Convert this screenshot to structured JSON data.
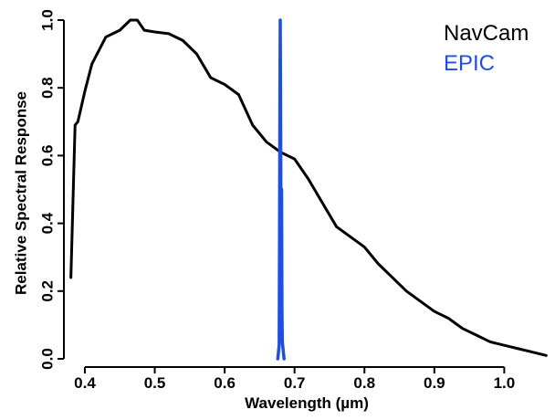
{
  "chart_data": {
    "type": "line",
    "title": "",
    "xlabel": "Wavelength (µm)",
    "ylabel": "Relative Spectral Response",
    "xlim": [
      0.37,
      1.07
    ],
    "ylim": [
      0.0,
      1.0
    ],
    "x_ticks": [
      0.4,
      0.5,
      0.6,
      0.7,
      0.8,
      0.9,
      1.0
    ],
    "x_tick_labels": [
      "0.4",
      "0.5",
      "0.6",
      "0.7",
      "0.8",
      "0.9",
      "1.0"
    ],
    "y_ticks": [
      0.0,
      0.2,
      0.4,
      0.6,
      0.8,
      1.0
    ],
    "y_tick_labels": [
      "0.0",
      "0.2",
      "0.4",
      "0.6",
      "0.8",
      "1.0"
    ],
    "grid": false,
    "legend_position": "top-right",
    "series": [
      {
        "name": "NavCam",
        "color": "#000000",
        "x": [
          0.38,
          0.386,
          0.39,
          0.4,
          0.41,
          0.43,
          0.45,
          0.465,
          0.475,
          0.485,
          0.5,
          0.52,
          0.54,
          0.56,
          0.58,
          0.6,
          0.62,
          0.64,
          0.66,
          0.68,
          0.7,
          0.72,
          0.74,
          0.76,
          0.78,
          0.8,
          0.82,
          0.84,
          0.86,
          0.88,
          0.9,
          0.92,
          0.94,
          0.96,
          0.98,
          1.0,
          1.02,
          1.04,
          1.06
        ],
        "y": [
          0.24,
          0.69,
          0.7,
          0.79,
          0.87,
          0.95,
          0.97,
          1.0,
          1.0,
          0.97,
          0.965,
          0.96,
          0.94,
          0.9,
          0.83,
          0.81,
          0.78,
          0.69,
          0.64,
          0.61,
          0.59,
          0.53,
          0.46,
          0.39,
          0.36,
          0.33,
          0.28,
          0.24,
          0.2,
          0.17,
          0.14,
          0.12,
          0.09,
          0.07,
          0.05,
          0.04,
          0.03,
          0.02,
          0.01
        ]
      },
      {
        "name": "EPIC",
        "color": "#1f4fe0",
        "x": [
          0.676,
          0.677,
          0.678,
          0.6785,
          0.679,
          0.6795,
          0.68,
          0.6805,
          0.681,
          0.6815,
          0.682,
          0.6825,
          0.683,
          0.684,
          0.685
        ],
        "y": [
          0.0,
          0.02,
          0.04,
          0.35,
          0.75,
          1.0,
          0.8,
          0.45,
          0.2,
          0.5,
          0.15,
          0.05,
          0.04,
          0.02,
          0.0
        ]
      }
    ]
  }
}
